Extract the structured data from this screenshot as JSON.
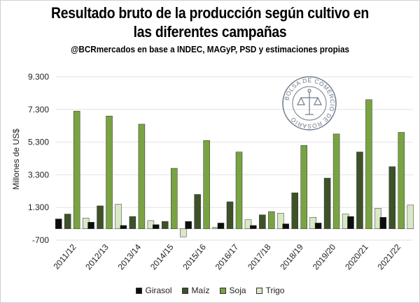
{
  "header": {
    "title_line1": "Resultado bruto de la producción según cultivo en",
    "title_line2": "las diferentes campañas",
    "subtitle": "@BCRmercados en base a INDEC, MAGyP, PSD y estimaciones propias"
  },
  "seal": {
    "text": "BOLSA DE COMERCIO DE ROSARIO"
  },
  "chart_data": {
    "type": "bar",
    "title": "Resultado bruto de la producción según cultivo en las diferentes campañas",
    "subtitle": "@BCRmercados en base a INDEC, MAGyP, PSD y estimaciones propias",
    "xlabel": "",
    "ylabel": "Millones de US$",
    "ylim": [
      -700,
      9300
    ],
    "yticks": [
      -700,
      1300,
      3300,
      5300,
      7300,
      9300
    ],
    "ytick_labels": [
      "-700",
      "1.300",
      "3.300",
      "5.300",
      "7.300",
      "9.300"
    ],
    "grid": true,
    "legend_position": "bottom",
    "categories": [
      "2011/12",
      "2012/13",
      "2013/14",
      "2014/15",
      "2015/16",
      "2016/17",
      "2017/18",
      "2018/19",
      "2019/20",
      "2020/21",
      "2021/22"
    ],
    "series": [
      {
        "name": "Girasol",
        "color": "#0b0f0b",
        "values": [
          600,
          400,
          200,
          250,
          450,
          350,
          200,
          300,
          350,
          750,
          700
        ]
      },
      {
        "name": "Maíz",
        "color": "#3d5228",
        "values": [
          900,
          1400,
          750,
          450,
          2100,
          1650,
          850,
          2200,
          3100,
          4700,
          3800
        ]
      },
      {
        "name": "Soja",
        "color": "#79a342",
        "values": [
          7200,
          6900,
          6400,
          3700,
          5400,
          4700,
          1050,
          5100,
          5800,
          7900,
          5900
        ]
      },
      {
        "name": "Trigo",
        "color": "#d9e8c5",
        "values": [
          650,
          1500,
          500,
          -500,
          100,
          550,
          950,
          700,
          900,
          1250,
          1450
        ]
      }
    ]
  }
}
